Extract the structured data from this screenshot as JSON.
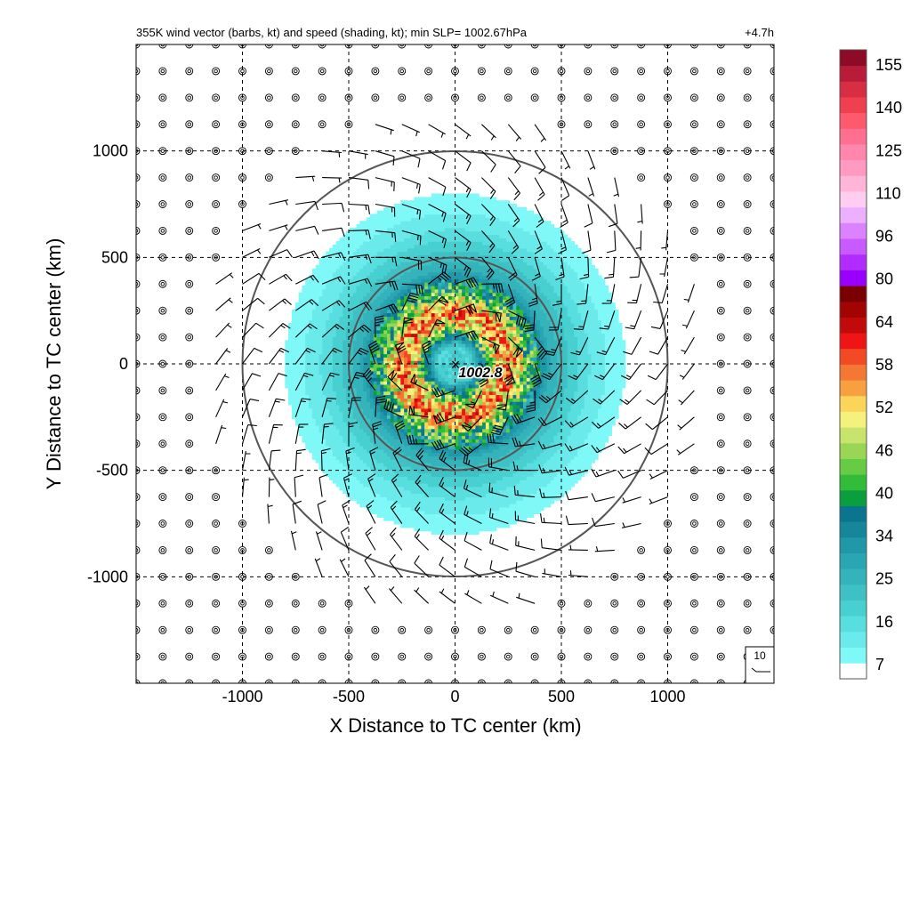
{
  "chart_data": {
    "type": "wind-barb-map",
    "title": "355K wind vector (barbs, kt) and speed (shading, kt); min SLP= 1002.67hPa",
    "forecast_hour": "+4.7h",
    "xlabel": "X Distance to TC center (km)",
    "ylabel": "Y Distance to TC center (km)",
    "xlim": [
      -1500,
      1500
    ],
    "ylim": [
      -1500,
      1500
    ],
    "xticks": [
      -1000,
      -500,
      0,
      500,
      1000
    ],
    "yticks": [
      -1000,
      -500,
      0,
      500,
      1000
    ],
    "xtick_labels": [
      "-1000",
      "-500",
      "0",
      "500",
      "1000"
    ],
    "ytick_labels": [
      "-1000",
      "-500",
      "0",
      "500",
      "1000"
    ],
    "grid": true,
    "range_rings_km": [
      500,
      1000
    ],
    "center_marker": "×",
    "center_label": "1002.8",
    "barb_spacing_km": 125,
    "reference_barb_label": "10",
    "colorbar": {
      "ticks": [
        "155",
        "140",
        "125",
        "110",
        "96",
        "80",
        "64",
        "58",
        "52",
        "46",
        "40",
        "34",
        "25",
        "16",
        "7"
      ],
      "colors": [
        "#ffffff",
        "#7ff8f8",
        "#6aeaea",
        "#58dede",
        "#48cfcf",
        "#3fc0c4",
        "#34b3bb",
        "#2aa6b2",
        "#2198a8",
        "#16879a",
        "#0b7590",
        "#0a9e3e",
        "#33bb3a",
        "#66cc44",
        "#99d655",
        "#c8e46c",
        "#f4f27c",
        "#fbd55a",
        "#f8a040",
        "#f57734",
        "#f24a25",
        "#f01515",
        "#c30a0a",
        "#a20303",
        "#7a0000",
        "#9900ff",
        "#b32cff",
        "#c85aff",
        "#db82ff",
        "#ecb0ff",
        "#ffcdf2",
        "#ffb5d8",
        "#ff9bc2",
        "#ff86ac",
        "#ff7090",
        "#fd5a6e",
        "#f04050",
        "#d82e44",
        "#b81c38",
        "#8e0b28"
      ]
    },
    "wind_speed_structure": [
      {
        "radius_km": 0,
        "speed_kt": 20
      },
      {
        "radius_km": 80,
        "speed_kt": 16
      },
      {
        "radius_km": 180,
        "speed_kt": 52
      },
      {
        "radius_km": 250,
        "speed_kt": 64
      },
      {
        "radius_km": 350,
        "speed_kt": 40
      },
      {
        "radius_km": 450,
        "speed_kt": 24
      },
      {
        "radius_km": 650,
        "speed_kt": 12
      },
      {
        "radius_km": 800,
        "speed_kt": 7
      }
    ]
  }
}
